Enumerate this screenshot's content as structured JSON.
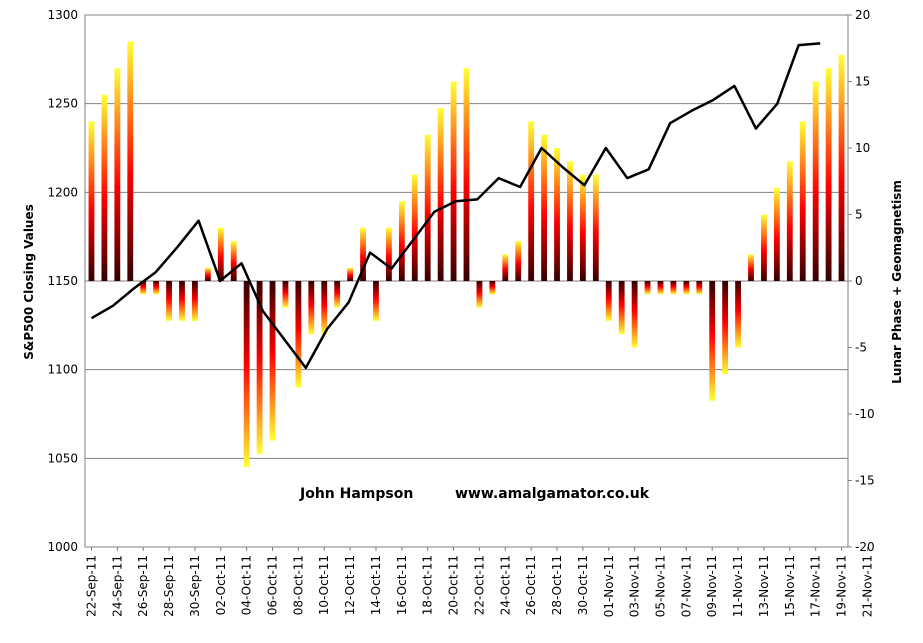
{
  "chart_data": {
    "type": "bar",
    "left_axis": {
      "label": "S&P500 Closing Values",
      "range": [
        1000,
        1300
      ],
      "ticks": [
        1000,
        1050,
        1100,
        1150,
        1200,
        1250,
        1300
      ]
    },
    "right_axis": {
      "label": "Lunar Phase + Geomagnetism",
      "range": [
        -20,
        20
      ],
      "ticks": [
        -20,
        -15,
        -10,
        -5,
        0,
        5,
        10,
        15,
        20
      ]
    },
    "grid": true,
    "x_tick_labels": [
      "22-Sep-11",
      "24-Sep-11",
      "26-Sep-11",
      "28-Sep-11",
      "30-Sep-11",
      "02-Oct-11",
      "04-Oct-11",
      "06-Oct-11",
      "08-Oct-11",
      "10-Oct-11",
      "12-Oct-11",
      "14-Oct-11",
      "16-Oct-11",
      "18-Oct-11",
      "20-Oct-11",
      "22-Oct-11",
      "24-Oct-11",
      "26-Oct-11",
      "28-Oct-11",
      "30-Oct-11",
      "01-Nov-11",
      "03-Nov-11",
      "05-Nov-11",
      "07-Nov-11",
      "09-Nov-11",
      "11-Nov-11",
      "13-Nov-11",
      "15-Nov-11",
      "17-Nov-11",
      "19-Nov-11",
      "21-Nov-11"
    ],
    "bar_series": {
      "axis": "right",
      "colors": {
        "top": "#ffff33",
        "mid": "#ff0000",
        "bottom": "#330000"
      },
      "values": [
        12,
        14,
        16,
        18,
        -1,
        -1,
        -3,
        -3,
        -3,
        1,
        4,
        3,
        -14,
        -13,
        -12,
        -2,
        -8,
        -4,
        -4,
        -2,
        1,
        4,
        -3,
        4,
        6,
        8,
        11,
        13,
        15,
        16,
        -2,
        -1,
        2,
        3,
        12,
        11,
        10,
        9,
        8,
        8,
        -3,
        -4,
        -5,
        -1,
        -1,
        -1,
        -1,
        -1,
        -9,
        -7,
        -5,
        2,
        5,
        7,
        9,
        12,
        15,
        16,
        17
      ]
    },
    "line_series": {
      "axis": "left",
      "color": "#000000",
      "points": [
        [
          0,
          1129
        ],
        [
          1,
          1136
        ],
        [
          2,
          1146
        ],
        [
          3,
          1155
        ],
        [
          4,
          1169
        ],
        [
          5,
          1184
        ],
        [
          6,
          1150
        ],
        [
          7,
          1160
        ],
        [
          8,
          1133
        ],
        [
          9,
          1117
        ],
        [
          10,
          1101
        ],
        [
          11,
          1123
        ],
        [
          12,
          1138
        ],
        [
          13,
          1166
        ],
        [
          14,
          1157
        ],
        [
          15,
          1173
        ],
        [
          16,
          1189
        ],
        [
          17,
          1195
        ],
        [
          18,
          1196
        ],
        [
          19,
          1208
        ],
        [
          20,
          1203
        ],
        [
          21,
          1225
        ],
        [
          22,
          1214
        ],
        [
          23,
          1204
        ],
        [
          24,
          1225
        ],
        [
          25,
          1208
        ],
        [
          26,
          1213
        ],
        [
          27,
          1239
        ],
        [
          28,
          1246
        ],
        [
          29,
          1252
        ],
        [
          30,
          1260
        ],
        [
          31,
          1236
        ],
        [
          32,
          1250
        ],
        [
          33,
          1283
        ],
        [
          34,
          1284
        ]
      ]
    }
  },
  "annotation": {
    "author": "John Hampson",
    "url": "www.amalgamator.co.uk"
  }
}
